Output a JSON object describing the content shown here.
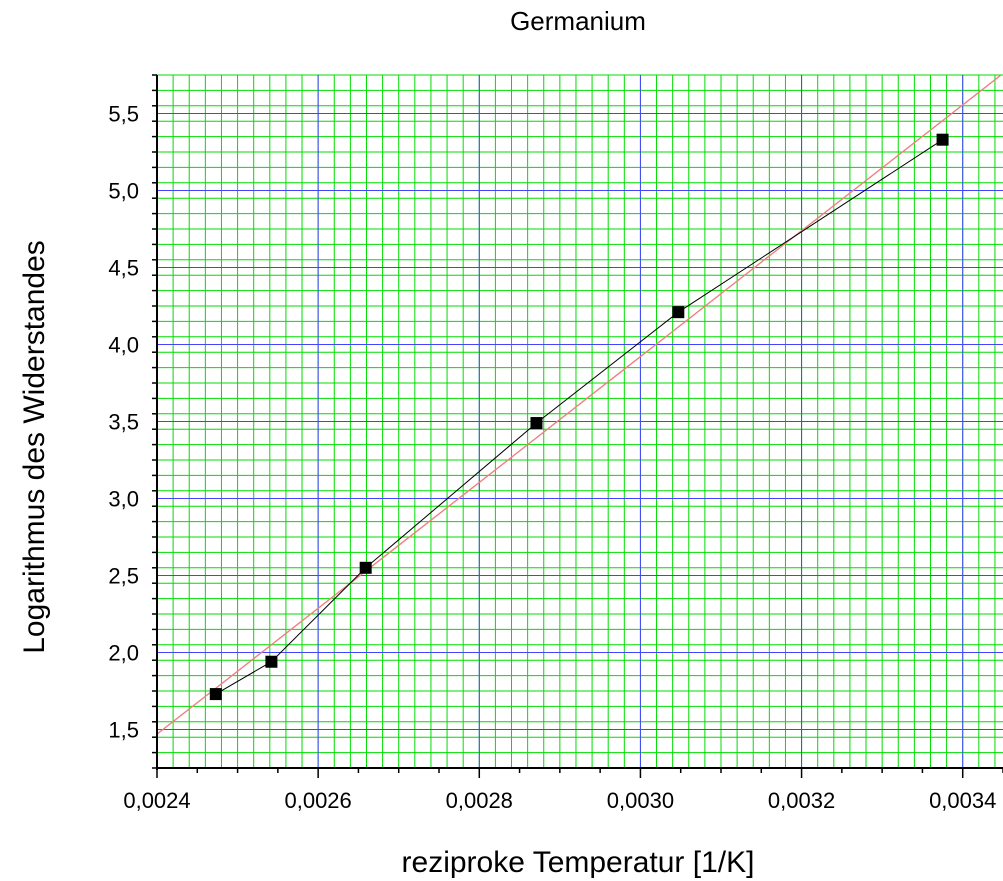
{
  "chart_data": {
    "type": "scatter",
    "title": "Germanium",
    "xlabel": "reziproke Temperatur [1/K]",
    "ylabel": "Logarithmus des Widerstandes",
    "xlim": [
      0.0024,
      0.00345
    ],
    "ylim": [
      1.25,
      5.75
    ],
    "xticks": [
      0.0024,
      0.0026,
      0.0028,
      0.003,
      0.0032,
      0.0034
    ],
    "xtick_labels": [
      "0,0024",
      "0,0026",
      "0,0028",
      "0,0030",
      "0,0032",
      "0,0034"
    ],
    "yticks": [
      1.5,
      2.0,
      2.5,
      3.0,
      3.5,
      4.0,
      4.5,
      5.0,
      5.5
    ],
    "ytick_labels": [
      "1,5",
      "2,0",
      "2,5",
      "3,0",
      "3,5",
      "4,0",
      "4,5",
      "5,0",
      "5,5"
    ],
    "grid": true,
    "series": [
      {
        "type": "scatter-line",
        "x": [
          0.002473,
          0.002542,
          0.002659,
          0.002871,
          0.003047,
          0.003375
        ],
        "y": [
          1.73,
          1.94,
          2.55,
          3.49,
          4.21,
          5.33
        ],
        "color": "#000000",
        "marker": "square"
      },
      {
        "type": "fit-line",
        "x": [
          0.0024,
          0.00345
        ],
        "y": [
          1.47,
          5.76
        ],
        "color": "#f08080"
      }
    ],
    "colors": {
      "background": "#00ff00",
      "minor_grid": "#00dd00",
      "major_grid": "#4444ff"
    }
  }
}
